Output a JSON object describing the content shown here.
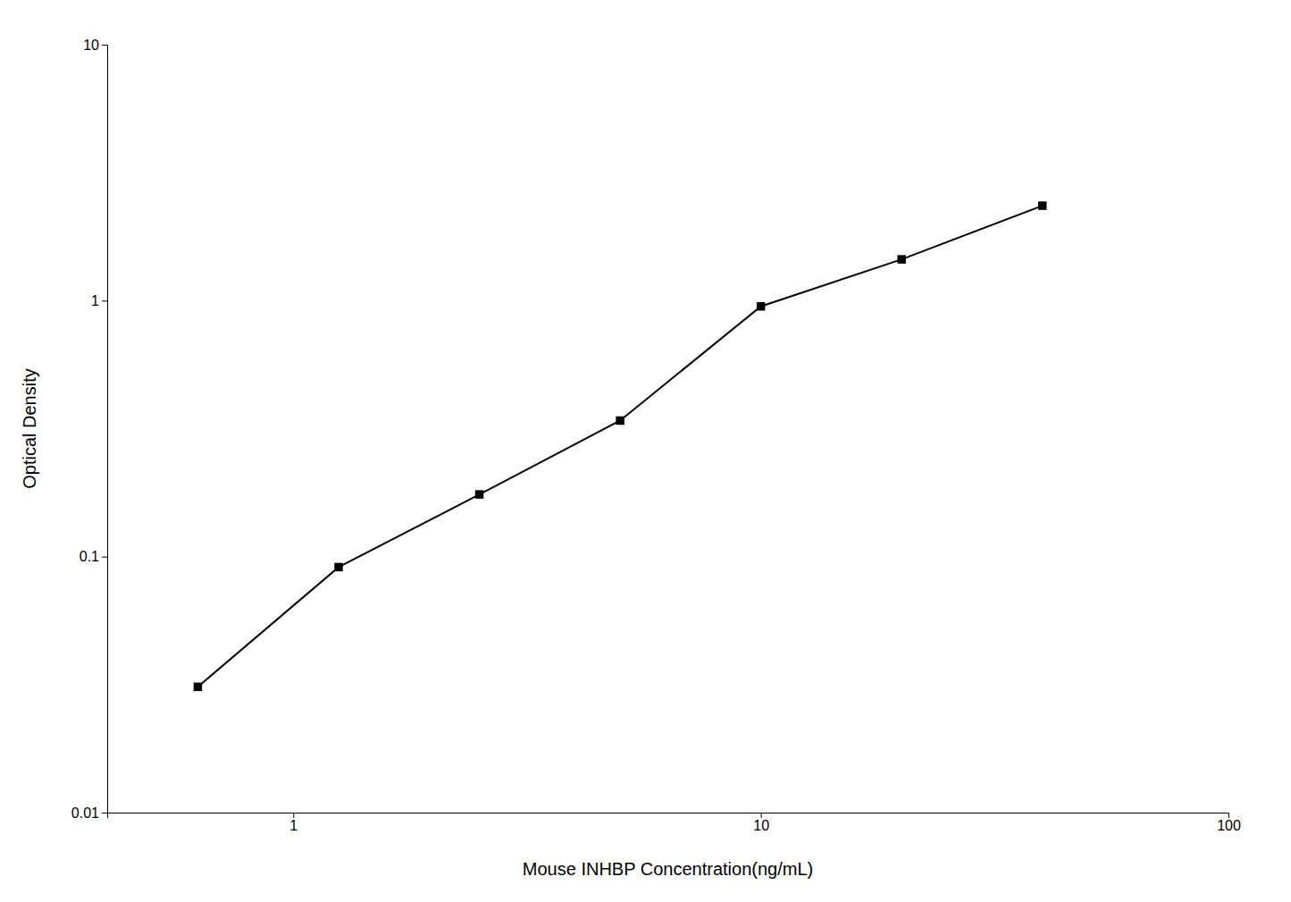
{
  "chart_data": {
    "type": "line",
    "x": [
      0.625,
      1.25,
      2.5,
      5.0,
      10.0,
      20.0,
      40.0
    ],
    "values": [
      0.031,
      0.091,
      0.175,
      0.34,
      0.95,
      1.45,
      2.35
    ],
    "xlabel": "Mouse INHBP Concentration(ng/mL)",
    "ylabel": "Optical Density",
    "log": true,
    "xlim": [
      0.4,
      100
    ],
    "ylim": [
      0.01,
      10
    ],
    "xticks": [
      1,
      10,
      100
    ],
    "yticks": [
      0.01,
      0.1,
      1,
      10
    ],
    "color": "#000000",
    "marker": "square",
    "grid": false
  }
}
